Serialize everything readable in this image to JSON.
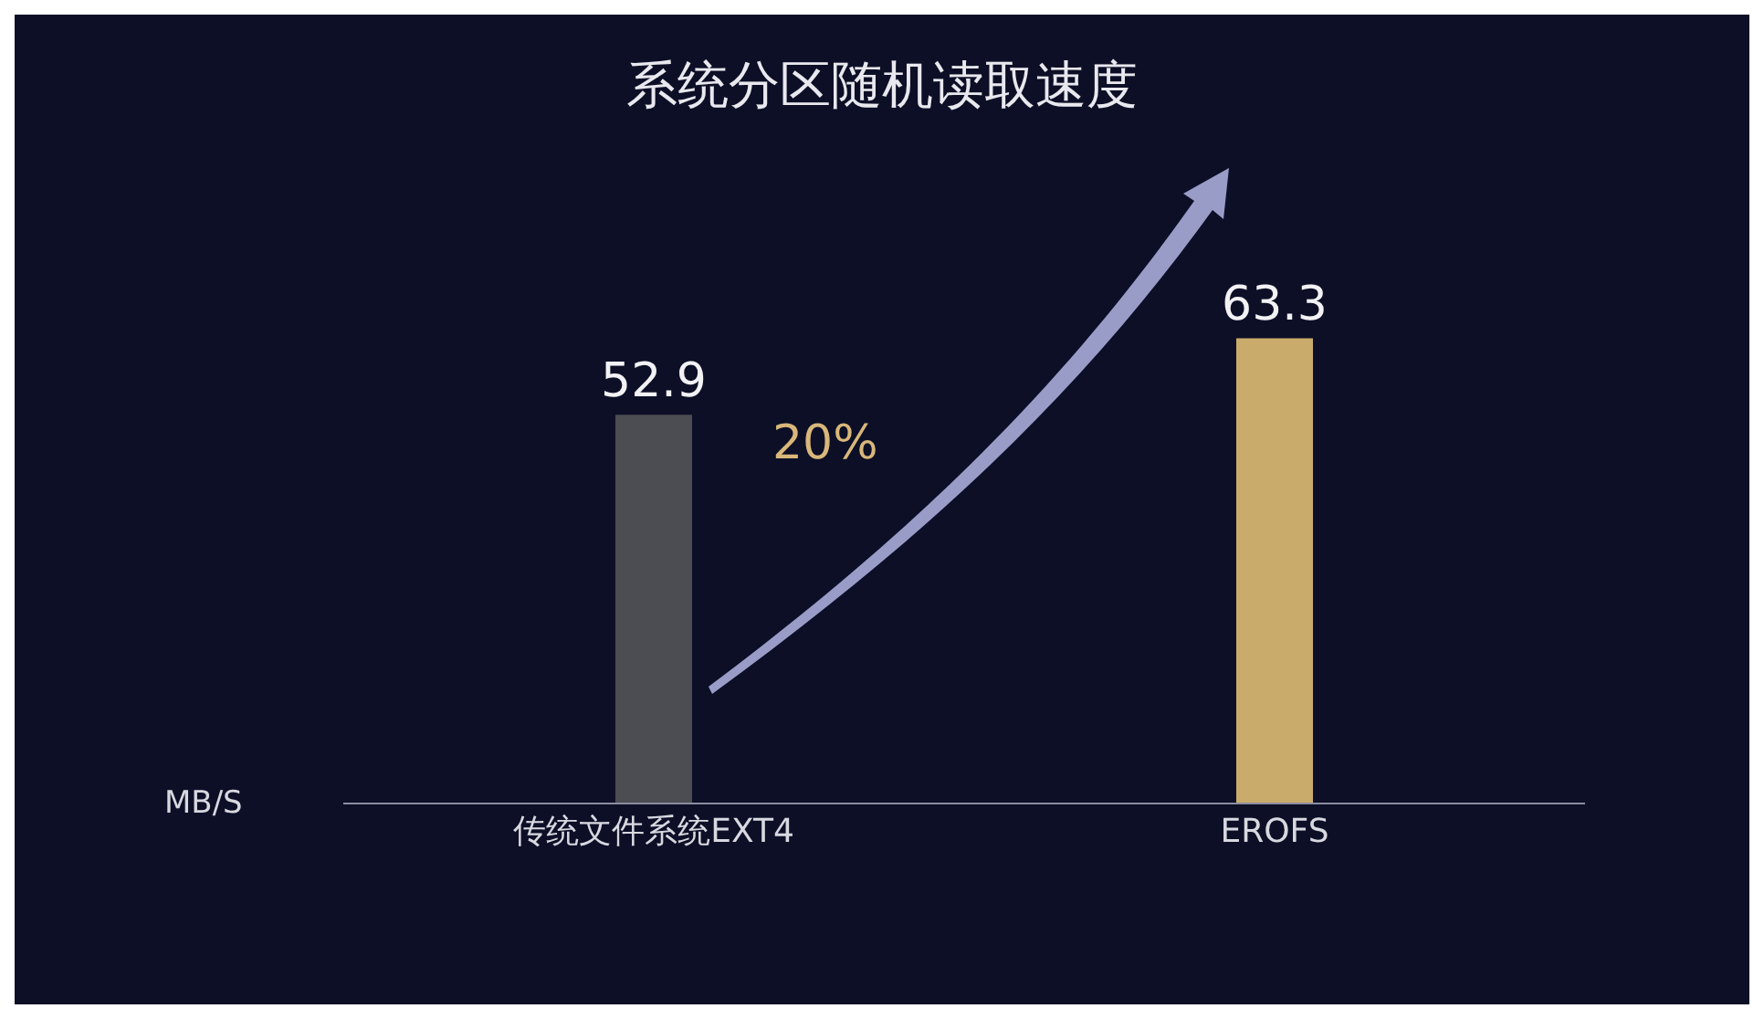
{
  "chart_data": {
    "type": "bar",
    "title": "系统分区随机读取速度",
    "ylabel": "MB/S",
    "categories": [
      "传统文件系统EXT4",
      "EROFS"
    ],
    "values": [
      52.9,
      63.3
    ],
    "colors": [
      "#4b4d53",
      "#c9ab6c"
    ],
    "data_labels": true,
    "annotations": [
      "20%"
    ],
    "grid": false,
    "legend": false
  }
}
